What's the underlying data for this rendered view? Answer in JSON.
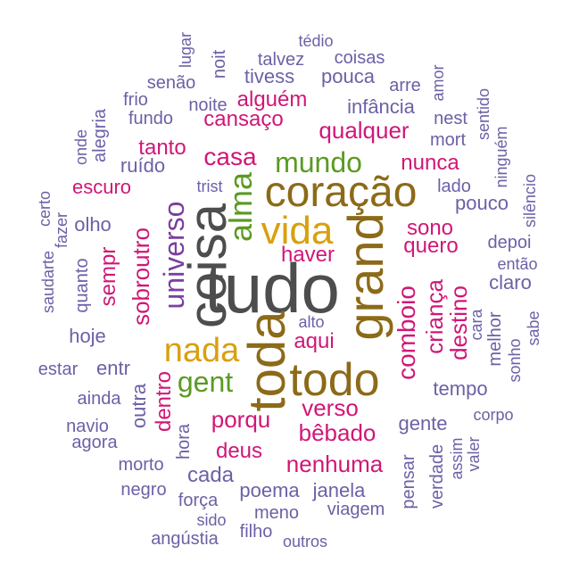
{
  "wordcloud": {
    "colors": {
      "dark_gray": "#4d4d4d",
      "brown": "#8c6a18",
      "gold": "#d9a00f",
      "green": "#5b9a23",
      "purple": "#7b3fa0",
      "magenta": "#d01777",
      "slate": "#6a62a6"
    },
    "words": [
      {
        "text": "tudo",
        "color": "dark_gray"
      },
      {
        "text": "coisa",
        "color": "dark_gray"
      },
      {
        "text": "grand",
        "color": "brown"
      },
      {
        "text": "toda",
        "color": "brown"
      },
      {
        "text": "coração",
        "color": "brown"
      },
      {
        "text": "todo",
        "color": "brown"
      },
      {
        "text": "vida",
        "color": "gold"
      },
      {
        "text": "nada",
        "color": "gold"
      },
      {
        "text": "alma",
        "color": "green"
      },
      {
        "text": "mundo",
        "color": "green"
      },
      {
        "text": "universo",
        "color": "purple"
      },
      {
        "text": "gent",
        "color": "green"
      },
      {
        "text": "casa",
        "color": "magenta"
      },
      {
        "text": "cansaço",
        "color": "magenta"
      },
      {
        "text": "alguém",
        "color": "magenta"
      },
      {
        "text": "qualquer",
        "color": "magenta"
      },
      {
        "text": "nunca",
        "color": "magenta"
      },
      {
        "text": "sono",
        "color": "magenta"
      },
      {
        "text": "quero",
        "color": "magenta"
      },
      {
        "text": "haver",
        "color": "magenta"
      },
      {
        "text": "comboio",
        "color": "magenta"
      },
      {
        "text": "criança",
        "color": "magenta"
      },
      {
        "text": "destino",
        "color": "magenta"
      },
      {
        "text": "aqui",
        "color": "magenta"
      },
      {
        "text": "verso",
        "color": "magenta"
      },
      {
        "text": "bêbado",
        "color": "magenta"
      },
      {
        "text": "porqu",
        "color": "magenta"
      },
      {
        "text": "deus",
        "color": "magenta"
      },
      {
        "text": "nenhuma",
        "color": "magenta"
      },
      {
        "text": "sobroutro",
        "color": "magenta"
      },
      {
        "text": "sempr",
        "color": "magenta"
      },
      {
        "text": "dentro",
        "color": "magenta"
      },
      {
        "text": "tanto",
        "color": "magenta"
      },
      {
        "text": "escuro",
        "color": "magenta"
      },
      {
        "text": "ruído",
        "color": "slate"
      },
      {
        "text": "olho",
        "color": "slate"
      },
      {
        "text": "trist",
        "color": "slate"
      },
      {
        "text": "infância",
        "color": "slate"
      },
      {
        "text": "noite",
        "color": "slate"
      },
      {
        "text": "fundo",
        "color": "slate"
      },
      {
        "text": "frio",
        "color": "slate"
      },
      {
        "text": "senão",
        "color": "slate"
      },
      {
        "text": "lugar",
        "color": "slate"
      },
      {
        "text": "noit",
        "color": "slate"
      },
      {
        "text": "tédio",
        "color": "slate"
      },
      {
        "text": "talvez",
        "color": "slate"
      },
      {
        "text": "coisas",
        "color": "slate"
      },
      {
        "text": "tivess",
        "color": "slate"
      },
      {
        "text": "pouca",
        "color": "slate"
      },
      {
        "text": "arre",
        "color": "slate"
      },
      {
        "text": "amor",
        "color": "slate"
      },
      {
        "text": "nest",
        "color": "slate"
      },
      {
        "text": "sentido",
        "color": "slate"
      },
      {
        "text": "mort",
        "color": "slate"
      },
      {
        "text": "ninguém",
        "color": "slate"
      },
      {
        "text": "lado",
        "color": "slate"
      },
      {
        "text": "pouco",
        "color": "slate"
      },
      {
        "text": "silêncio",
        "color": "slate"
      },
      {
        "text": "depoi",
        "color": "slate"
      },
      {
        "text": "então",
        "color": "slate"
      },
      {
        "text": "claro",
        "color": "slate"
      },
      {
        "text": "cara",
        "color": "slate"
      },
      {
        "text": "melhor",
        "color": "slate"
      },
      {
        "text": "sabe",
        "color": "slate"
      },
      {
        "text": "sonho",
        "color": "slate"
      },
      {
        "text": "tempo",
        "color": "slate"
      },
      {
        "text": "gente",
        "color": "slate"
      },
      {
        "text": "corpo",
        "color": "slate"
      },
      {
        "text": "valer",
        "color": "slate"
      },
      {
        "text": "assim",
        "color": "slate"
      },
      {
        "text": "verdade",
        "color": "slate"
      },
      {
        "text": "pensar",
        "color": "slate"
      },
      {
        "text": "janela",
        "color": "slate"
      },
      {
        "text": "viagem",
        "color": "slate"
      },
      {
        "text": "poema",
        "color": "slate"
      },
      {
        "text": "cada",
        "color": "slate"
      },
      {
        "text": "hora",
        "color": "slate"
      },
      {
        "text": "outra",
        "color": "slate"
      },
      {
        "text": "ainda",
        "color": "slate"
      },
      {
        "text": "entr",
        "color": "slate"
      },
      {
        "text": "estar",
        "color": "slate"
      },
      {
        "text": "hoje",
        "color": "slate"
      },
      {
        "text": "quanto",
        "color": "slate"
      },
      {
        "text": "saudarte",
        "color": "slate"
      },
      {
        "text": "fazer",
        "color": "slate"
      },
      {
        "text": "certo",
        "color": "slate"
      },
      {
        "text": "onde",
        "color": "slate"
      },
      {
        "text": "alegria",
        "color": "slate"
      },
      {
        "text": "navio",
        "color": "slate"
      },
      {
        "text": "agora",
        "color": "slate"
      },
      {
        "text": "morto",
        "color": "slate"
      },
      {
        "text": "negro",
        "color": "slate"
      },
      {
        "text": "força",
        "color": "slate"
      },
      {
        "text": "sido",
        "color": "slate"
      },
      {
        "text": "meno",
        "color": "slate"
      },
      {
        "text": "angústia",
        "color": "slate"
      },
      {
        "text": "filho",
        "color": "slate"
      },
      {
        "text": "outros",
        "color": "slate"
      },
      {
        "text": "alto",
        "color": "slate"
      }
    ]
  }
}
